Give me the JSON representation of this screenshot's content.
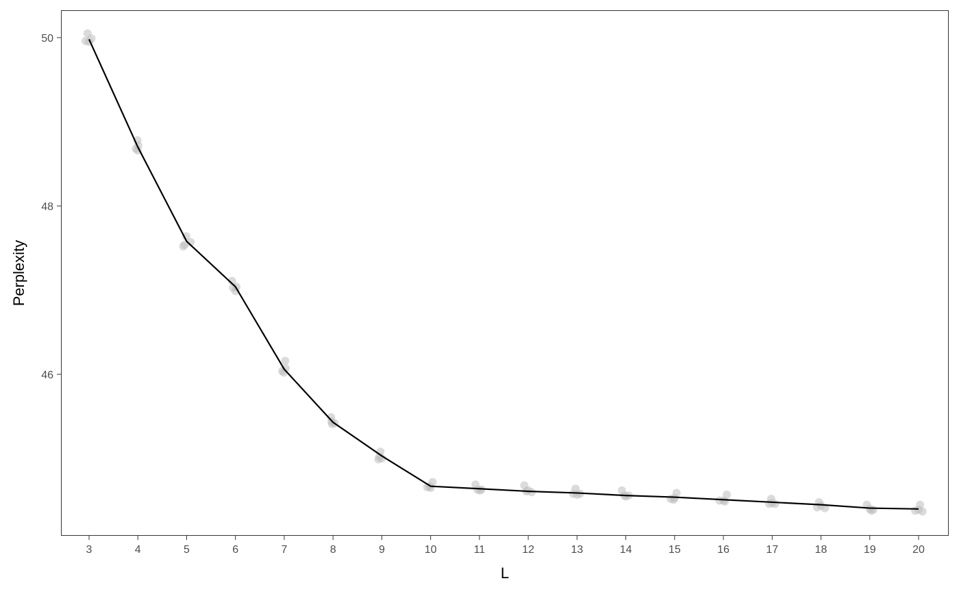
{
  "chart_data": {
    "type": "line",
    "title": "",
    "xlabel": "L",
    "ylabel": "Perplexity",
    "xlim": [
      2.4,
      20.6
    ],
    "ylim": [
      44.0,
      50.33
    ],
    "x_ticks": [
      3,
      4,
      5,
      6,
      7,
      8,
      9,
      10,
      11,
      12,
      13,
      14,
      15,
      16,
      17,
      18,
      19,
      20
    ],
    "y_ticks": [
      46,
      48,
      50
    ],
    "grid": false,
    "series": [
      {
        "kind": "line",
        "color": "#000000",
        "x": [
          3,
          4,
          5,
          6,
          7,
          8,
          9,
          10,
          11,
          12,
          13,
          14,
          15,
          16,
          17,
          18,
          19,
          20
        ],
        "y": [
          49.98,
          48.7,
          47.58,
          47.04,
          46.06,
          45.43,
          45.03,
          44.67,
          44.64,
          44.61,
          44.59,
          44.56,
          44.54,
          44.51,
          44.48,
          44.45,
          44.41,
          44.4
        ]
      },
      {
        "kind": "scatter",
        "color": "#bdbdbd",
        "points": [
          [
            2.93,
            49.96
          ],
          [
            2.97,
            50.05
          ],
          [
            3.05,
            49.99
          ],
          [
            3.0,
            49.95
          ],
          [
            3.96,
            48.68
          ],
          [
            3.99,
            48.78
          ],
          [
            4.01,
            48.72
          ],
          [
            4.0,
            48.66
          ],
          [
            4.93,
            47.52
          ],
          [
            4.99,
            47.64
          ],
          [
            5.08,
            47.57
          ],
          [
            4.96,
            47.54
          ],
          [
            5.93,
            47.11
          ],
          [
            5.95,
            47.03
          ],
          [
            6.02,
            47.04
          ],
          [
            6.0,
            46.99
          ],
          [
            6.96,
            46.04
          ],
          [
            7.02,
            46.16
          ],
          [
            7.03,
            46.07
          ],
          [
            6.99,
            46.02
          ],
          [
            7.96,
            45.49
          ],
          [
            7.98,
            45.41
          ],
          [
            8.03,
            45.42
          ],
          [
            7.97,
            45.44
          ],
          [
            8.93,
            44.99
          ],
          [
            8.97,
            45.08
          ],
          [
            9.0,
            45.0
          ],
          [
            8.95,
            45.02
          ],
          [
            9.93,
            44.66
          ],
          [
            9.98,
            44.67
          ],
          [
            10.04,
            44.72
          ],
          [
            10.0,
            44.65
          ],
          [
            10.92,
            44.69
          ],
          [
            10.96,
            44.63
          ],
          [
            11.04,
            44.63
          ],
          [
            11.01,
            44.62
          ],
          [
            11.92,
            44.68
          ],
          [
            11.96,
            44.61
          ],
          [
            12.07,
            44.6
          ],
          [
            12.0,
            44.62
          ],
          [
            12.92,
            44.58
          ],
          [
            12.97,
            44.64
          ],
          [
            13.06,
            44.58
          ],
          [
            13.0,
            44.57
          ],
          [
            13.92,
            44.62
          ],
          [
            13.97,
            44.56
          ],
          [
            14.06,
            44.56
          ],
          [
            14.0,
            44.55
          ],
          [
            14.92,
            44.52
          ],
          [
            14.98,
            44.51
          ],
          [
            15.04,
            44.59
          ],
          [
            15.0,
            44.53
          ],
          [
            15.92,
            44.5
          ],
          [
            16.03,
            44.49
          ],
          [
            16.07,
            44.57
          ],
          [
            16.0,
            44.5
          ],
          [
            16.94,
            44.46
          ],
          [
            16.98,
            44.52
          ],
          [
            17.06,
            44.46
          ],
          [
            17.0,
            44.47
          ],
          [
            17.92,
            44.42
          ],
          [
            17.96,
            44.48
          ],
          [
            18.08,
            44.41
          ],
          [
            18.0,
            44.44
          ],
          [
            18.94,
            44.45
          ],
          [
            19.03,
            44.38
          ],
          [
            19.07,
            44.39
          ],
          [
            19.0,
            44.4
          ],
          [
            19.93,
            44.38
          ],
          [
            20.03,
            44.45
          ],
          [
            20.08,
            44.37
          ],
          [
            20.0,
            44.39
          ]
        ]
      }
    ]
  }
}
